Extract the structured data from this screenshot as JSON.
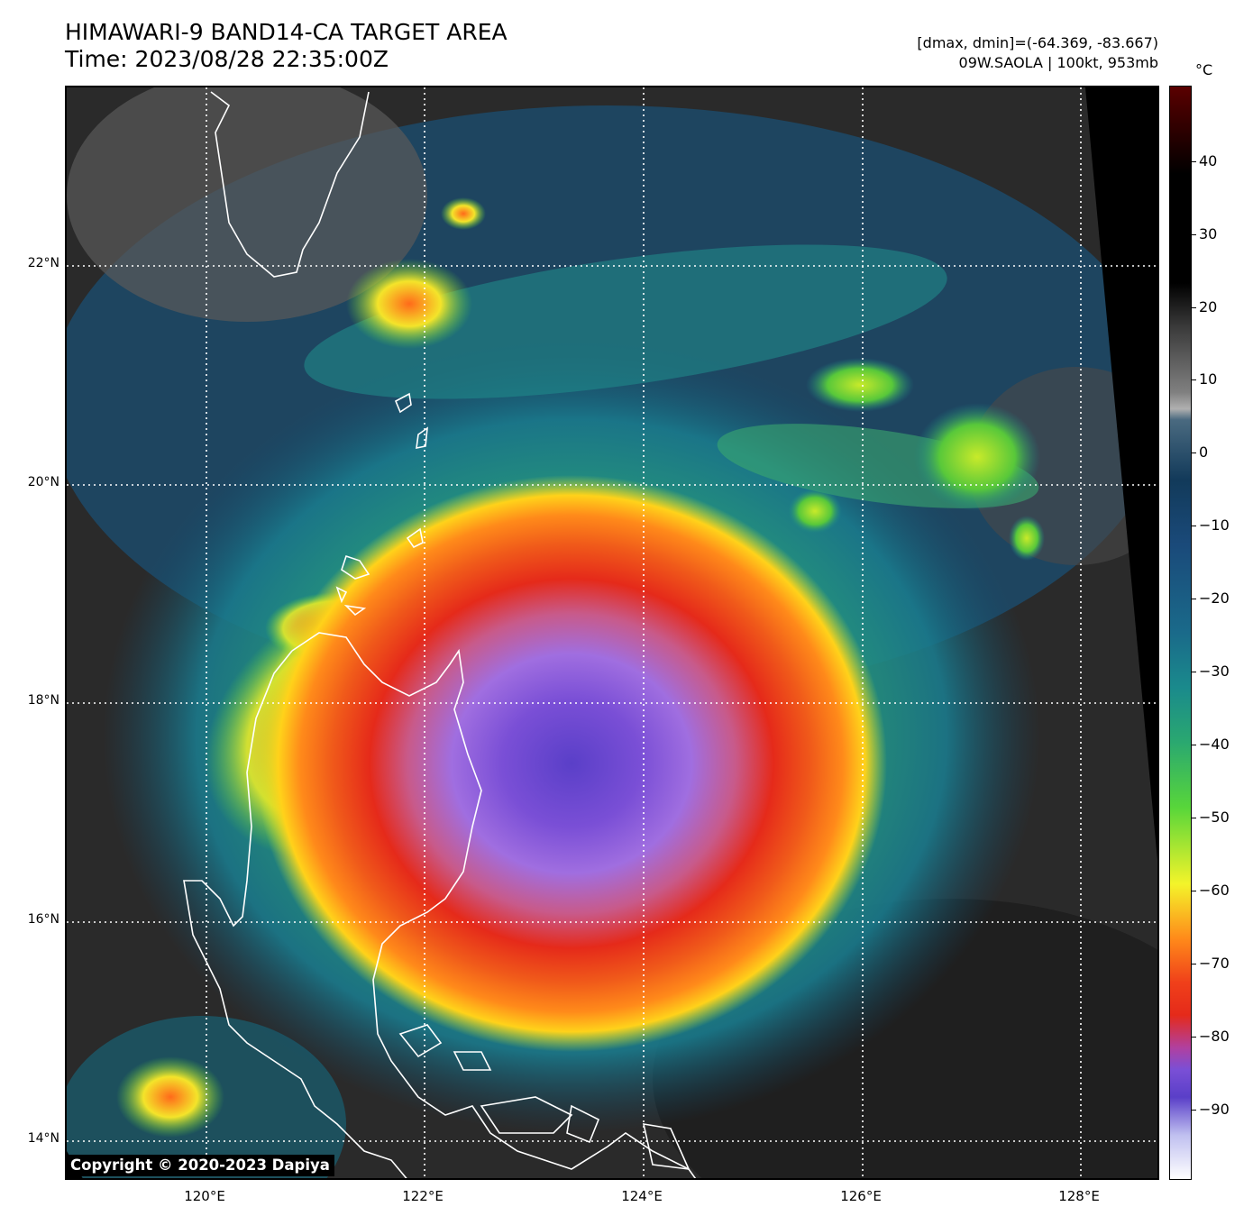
{
  "header": {
    "title_line1": "HIMAWARI-9 BAND14-CA TARGET AREA",
    "title_line2": "Time: 2023/08/28 22:35:00Z",
    "info_line1": "[dmax, dmin]=(-64.369, -83.667)",
    "info_line2": "09W.SAOLA | 100kt, 953mb"
  },
  "map": {
    "lat_labels": [
      "22°N",
      "20°N",
      "18°N",
      "16°N",
      "14°N"
    ],
    "lon_labels": [
      "120°E",
      "122°E",
      "124°E",
      "126°E",
      "128°E"
    ],
    "storm": "09W.SAOLA",
    "copyright": "Copyright © 2020-2023 Dapiya"
  },
  "colorbar": {
    "unit": "°C",
    "ticks": [
      "40",
      "30",
      "20",
      "10",
      "0",
      "−10",
      "−20",
      "−30",
      "−40",
      "−50",
      "−60",
      "−70",
      "−80",
      "−90"
    ],
    "range": [
      -100,
      50
    ],
    "colors": {
      "very_cold": "#ffffff",
      "purple": "#7a4fd6",
      "red": "#e52a1a",
      "orange": "#ff8a1a",
      "yellow": "#f4f42a",
      "green": "#58d63a",
      "teal": "#1a8a8c",
      "dark_blue": "#123a5a",
      "gray": "#808080",
      "black": "#000000",
      "dark_red": "#5a0000"
    }
  }
}
